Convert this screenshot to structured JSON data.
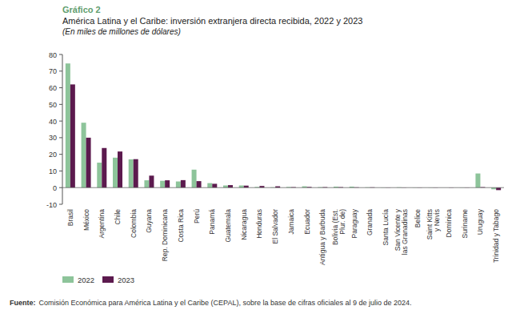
{
  "chart_data": {
    "type": "bar",
    "label": "Gráfico 2",
    "title": "América Latina y el Caribe: inversión extranjera directa recibida, 2022 y 2023",
    "subtitle": "(En miles de millones de dólares)",
    "source_label": "Fuente:",
    "source": "Comisión Económica para América Latina y el Caribe (CEPAL), sobre la base de cifras oficiales al 9 de julio de 2024.",
    "categories": [
      "Brasil",
      "México",
      "Argentina",
      "Chile",
      "Colombia",
      "Guyana",
      "Rep. Dominicana",
      "Costa Rica",
      "Perú",
      "Panamá",
      "Guatemala",
      "Nicaragua",
      "Honduras",
      "El Salvador",
      "Jamaica",
      "Ecuador",
      "Antigua y Barbuda",
      "Bolivia (Est. Plur. de)",
      "Paraguay",
      "Granada",
      "Santa Lucía",
      "San Vicente y las Granadinas",
      "Belice",
      "Saint Kitts y Nevis",
      "Dominica",
      "Suriname",
      "Uruguay",
      "Trinidad y Tabago"
    ],
    "series": [
      {
        "name": "2022",
        "color": "#8dc49a",
        "values": [
          74.6,
          39,
          15,
          18,
          17,
          4.4,
          4.1,
          3.7,
          10.8,
          2.7,
          1.3,
          1.3,
          0.4,
          0.2,
          0.4,
          0.8,
          0.3,
          0.6,
          0.6,
          0.2,
          0.1,
          0.2,
          0.1,
          0.1,
          0.0,
          0.1,
          8.5,
          -1.0
        ]
      },
      {
        "name": "2023",
        "color": "#5c1a4e",
        "values": [
          62,
          30,
          23.8,
          21.7,
          17.1,
          7.2,
          4.4,
          4.5,
          3.9,
          2.3,
          1.5,
          1.2,
          1.0,
          0.8,
          0.3,
          0.4,
          0.3,
          0.3,
          0.2,
          0.2,
          0.1,
          0.1,
          0.1,
          0.1,
          0.1,
          0.1,
          0.3,
          -1.5
        ]
      }
    ],
    "ylim": [
      -10,
      80
    ],
    "yticks": [
      -10,
      0,
      10,
      20,
      30,
      40,
      50,
      60,
      70,
      80
    ],
    "grid": false,
    "legend": "bottom-left"
  }
}
